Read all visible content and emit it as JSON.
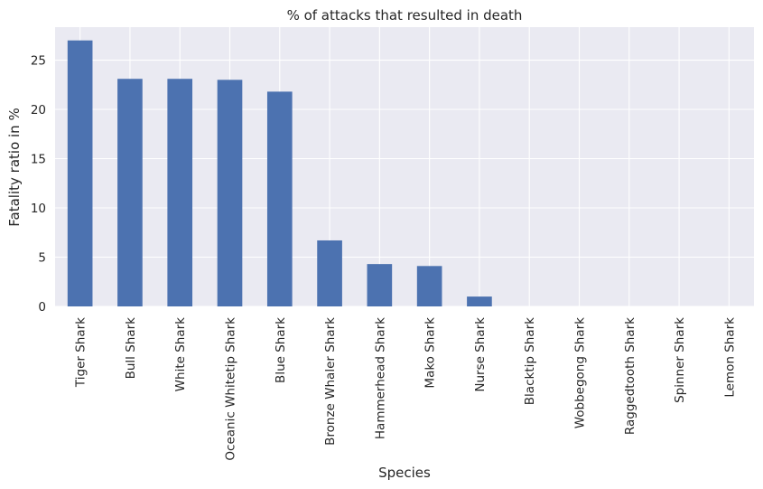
{
  "chart_data": {
    "type": "bar",
    "title": "% of attacks that resulted in death",
    "xlabel": "Species",
    "ylabel": "Fatality ratio in %",
    "categories": [
      "Tiger Shark",
      "Bull Shark",
      "White Shark",
      "Oceanic Whitetip Shark",
      "Blue Shark",
      "Bronze Whaler Shark",
      "Hammerhead Shark",
      "Mako Shark",
      "Nurse Shark",
      "Blacktip Shark",
      "Wobbegong Shark",
      "Raggedtooth Shark",
      "Spinner Shark",
      "Lemon Shark"
    ],
    "values": [
      27.0,
      23.1,
      23.1,
      23.0,
      21.8,
      6.7,
      4.3,
      4.1,
      1.0,
      0,
      0,
      0,
      0,
      0
    ],
    "yticks": [
      "0",
      "5",
      "10",
      "15",
      "20",
      "25"
    ],
    "ylim": [
      0,
      28.35
    ],
    "grid": true,
    "bar_color": "#4c72b0",
    "background_color": "#eaeaf2"
  }
}
